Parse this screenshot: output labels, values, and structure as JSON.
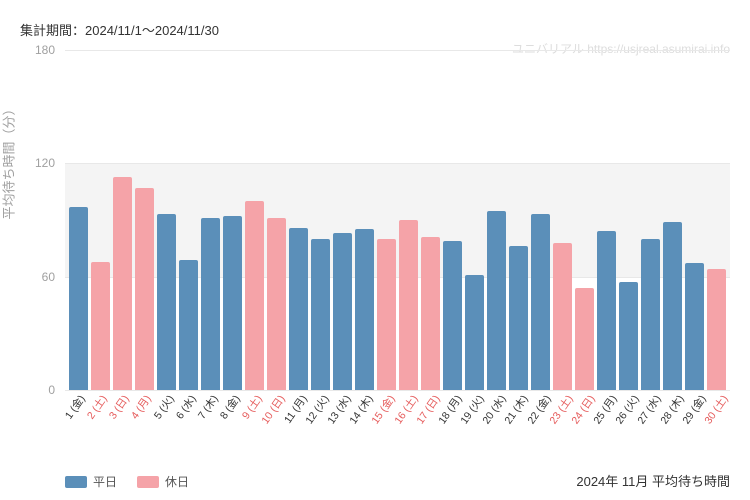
{
  "header": "集計期間：2024/11/1～2024/11/30",
  "watermark": "ユニバリアル  https://usjreal.asumirai.info",
  "ylabel": "平均待ち時間（分）",
  "footer_title": "2024年 11月 平均待ち時間",
  "legend": {
    "weekday_label": "平日",
    "holiday_label": "休日"
  },
  "chart": {
    "type": "bar",
    "ylim": [
      0,
      180
    ],
    "ytick_step": 60,
    "yticks": [
      0,
      60,
      120,
      180
    ],
    "weekday_color": "#5b8fb9",
    "holiday_color": "#f5a3a8",
    "weekday_text_color": "#333333",
    "holiday_text_color": "#e55a5a",
    "background_color": "#ffffff",
    "band_color": "#f4f4f4",
    "grid_color": "#e8e8e8",
    "data": [
      {
        "label": "1 (金)",
        "value": 97,
        "holiday": false
      },
      {
        "label": "2 (土)",
        "value": 68,
        "holiday": true
      },
      {
        "label": "3 (日)",
        "value": 113,
        "holiday": true
      },
      {
        "label": "4 (月)",
        "value": 107,
        "holiday": true
      },
      {
        "label": "5 (火)",
        "value": 93,
        "holiday": false
      },
      {
        "label": "6 (水)",
        "value": 69,
        "holiday": false
      },
      {
        "label": "7 (木)",
        "value": 91,
        "holiday": false
      },
      {
        "label": "8 (金)",
        "value": 92,
        "holiday": false
      },
      {
        "label": "9 (土)",
        "value": 100,
        "holiday": true
      },
      {
        "label": "10 (日)",
        "value": 91,
        "holiday": true
      },
      {
        "label": "11 (月)",
        "value": 86,
        "holiday": false
      },
      {
        "label": "12 (火)",
        "value": 80,
        "holiday": false
      },
      {
        "label": "13 (水)",
        "value": 83,
        "holiday": false
      },
      {
        "label": "14 (木)",
        "value": 85,
        "holiday": false
      },
      {
        "label": "15 (金)",
        "value": 80,
        "holiday": true
      },
      {
        "label": "16 (土)",
        "value": 90,
        "holiday": true
      },
      {
        "label": "17 (日)",
        "value": 81,
        "holiday": true
      },
      {
        "label": "18 (月)",
        "value": 79,
        "holiday": false
      },
      {
        "label": "19 (火)",
        "value": 61,
        "holiday": false
      },
      {
        "label": "20 (水)",
        "value": 95,
        "holiday": false
      },
      {
        "label": "21 (木)",
        "value": 76,
        "holiday": false
      },
      {
        "label": "22 (金)",
        "value": 93,
        "holiday": false
      },
      {
        "label": "23 (土)",
        "value": 78,
        "holiday": true
      },
      {
        "label": "24 (日)",
        "value": 54,
        "holiday": true
      },
      {
        "label": "25 (月)",
        "value": 84,
        "holiday": false
      },
      {
        "label": "26 (火)",
        "value": 57,
        "holiday": false
      },
      {
        "label": "27 (水)",
        "value": 80,
        "holiday": false
      },
      {
        "label": "28 (木)",
        "value": 89,
        "holiday": false
      },
      {
        "label": "29 (金)",
        "value": 67,
        "holiday": false
      },
      {
        "label": "30 (土)",
        "value": 64,
        "holiday": true
      }
    ]
  }
}
